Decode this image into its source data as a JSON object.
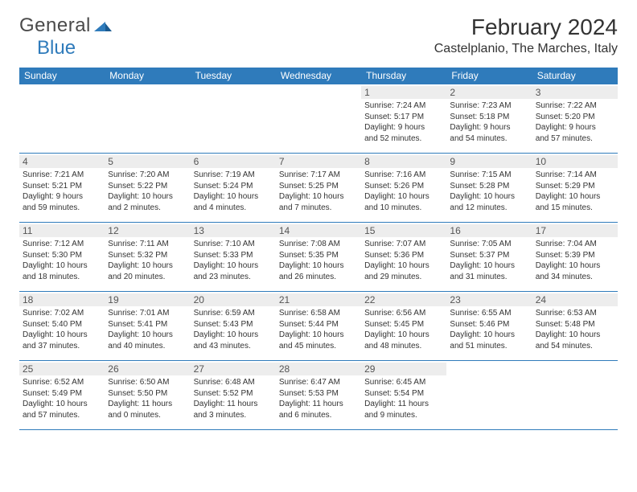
{
  "logo": {
    "text1": "General",
    "text2": "Blue"
  },
  "title": "February 2024",
  "location": "Castelplanio, The Marches, Italy",
  "colors": {
    "header_bg": "#2f7bbb",
    "header_text": "#ffffff",
    "rule": "#2f7bbb",
    "daynum_bg": "#ededed",
    "body_text": "#333333"
  },
  "typography": {
    "title_fontsize": 28,
    "location_fontsize": 16,
    "dayheader_fontsize": 12,
    "cell_fontsize": 10
  },
  "day_headers": [
    "Sunday",
    "Monday",
    "Tuesday",
    "Wednesday",
    "Thursday",
    "Friday",
    "Saturday"
  ],
  "weeks": [
    [
      null,
      null,
      null,
      null,
      {
        "n": "1",
        "sr": "Sunrise: 7:24 AM",
        "ss": "Sunset: 5:17 PM",
        "d1": "Daylight: 9 hours",
        "d2": "and 52 minutes."
      },
      {
        "n": "2",
        "sr": "Sunrise: 7:23 AM",
        "ss": "Sunset: 5:18 PM",
        "d1": "Daylight: 9 hours",
        "d2": "and 54 minutes."
      },
      {
        "n": "3",
        "sr": "Sunrise: 7:22 AM",
        "ss": "Sunset: 5:20 PM",
        "d1": "Daylight: 9 hours",
        "d2": "and 57 minutes."
      }
    ],
    [
      {
        "n": "4",
        "sr": "Sunrise: 7:21 AM",
        "ss": "Sunset: 5:21 PM",
        "d1": "Daylight: 9 hours",
        "d2": "and 59 minutes."
      },
      {
        "n": "5",
        "sr": "Sunrise: 7:20 AM",
        "ss": "Sunset: 5:22 PM",
        "d1": "Daylight: 10 hours",
        "d2": "and 2 minutes."
      },
      {
        "n": "6",
        "sr": "Sunrise: 7:19 AM",
        "ss": "Sunset: 5:24 PM",
        "d1": "Daylight: 10 hours",
        "d2": "and 4 minutes."
      },
      {
        "n": "7",
        "sr": "Sunrise: 7:17 AM",
        "ss": "Sunset: 5:25 PM",
        "d1": "Daylight: 10 hours",
        "d2": "and 7 minutes."
      },
      {
        "n": "8",
        "sr": "Sunrise: 7:16 AM",
        "ss": "Sunset: 5:26 PM",
        "d1": "Daylight: 10 hours",
        "d2": "and 10 minutes."
      },
      {
        "n": "9",
        "sr": "Sunrise: 7:15 AM",
        "ss": "Sunset: 5:28 PM",
        "d1": "Daylight: 10 hours",
        "d2": "and 12 minutes."
      },
      {
        "n": "10",
        "sr": "Sunrise: 7:14 AM",
        "ss": "Sunset: 5:29 PM",
        "d1": "Daylight: 10 hours",
        "d2": "and 15 minutes."
      }
    ],
    [
      {
        "n": "11",
        "sr": "Sunrise: 7:12 AM",
        "ss": "Sunset: 5:30 PM",
        "d1": "Daylight: 10 hours",
        "d2": "and 18 minutes."
      },
      {
        "n": "12",
        "sr": "Sunrise: 7:11 AM",
        "ss": "Sunset: 5:32 PM",
        "d1": "Daylight: 10 hours",
        "d2": "and 20 minutes."
      },
      {
        "n": "13",
        "sr": "Sunrise: 7:10 AM",
        "ss": "Sunset: 5:33 PM",
        "d1": "Daylight: 10 hours",
        "d2": "and 23 minutes."
      },
      {
        "n": "14",
        "sr": "Sunrise: 7:08 AM",
        "ss": "Sunset: 5:35 PM",
        "d1": "Daylight: 10 hours",
        "d2": "and 26 minutes."
      },
      {
        "n": "15",
        "sr": "Sunrise: 7:07 AM",
        "ss": "Sunset: 5:36 PM",
        "d1": "Daylight: 10 hours",
        "d2": "and 29 minutes."
      },
      {
        "n": "16",
        "sr": "Sunrise: 7:05 AM",
        "ss": "Sunset: 5:37 PM",
        "d1": "Daylight: 10 hours",
        "d2": "and 31 minutes."
      },
      {
        "n": "17",
        "sr": "Sunrise: 7:04 AM",
        "ss": "Sunset: 5:39 PM",
        "d1": "Daylight: 10 hours",
        "d2": "and 34 minutes."
      }
    ],
    [
      {
        "n": "18",
        "sr": "Sunrise: 7:02 AM",
        "ss": "Sunset: 5:40 PM",
        "d1": "Daylight: 10 hours",
        "d2": "and 37 minutes."
      },
      {
        "n": "19",
        "sr": "Sunrise: 7:01 AM",
        "ss": "Sunset: 5:41 PM",
        "d1": "Daylight: 10 hours",
        "d2": "and 40 minutes."
      },
      {
        "n": "20",
        "sr": "Sunrise: 6:59 AM",
        "ss": "Sunset: 5:43 PM",
        "d1": "Daylight: 10 hours",
        "d2": "and 43 minutes."
      },
      {
        "n": "21",
        "sr": "Sunrise: 6:58 AM",
        "ss": "Sunset: 5:44 PM",
        "d1": "Daylight: 10 hours",
        "d2": "and 45 minutes."
      },
      {
        "n": "22",
        "sr": "Sunrise: 6:56 AM",
        "ss": "Sunset: 5:45 PM",
        "d1": "Daylight: 10 hours",
        "d2": "and 48 minutes."
      },
      {
        "n": "23",
        "sr": "Sunrise: 6:55 AM",
        "ss": "Sunset: 5:46 PM",
        "d1": "Daylight: 10 hours",
        "d2": "and 51 minutes."
      },
      {
        "n": "24",
        "sr": "Sunrise: 6:53 AM",
        "ss": "Sunset: 5:48 PM",
        "d1": "Daylight: 10 hours",
        "d2": "and 54 minutes."
      }
    ],
    [
      {
        "n": "25",
        "sr": "Sunrise: 6:52 AM",
        "ss": "Sunset: 5:49 PM",
        "d1": "Daylight: 10 hours",
        "d2": "and 57 minutes."
      },
      {
        "n": "26",
        "sr": "Sunrise: 6:50 AM",
        "ss": "Sunset: 5:50 PM",
        "d1": "Daylight: 11 hours",
        "d2": "and 0 minutes."
      },
      {
        "n": "27",
        "sr": "Sunrise: 6:48 AM",
        "ss": "Sunset: 5:52 PM",
        "d1": "Daylight: 11 hours",
        "d2": "and 3 minutes."
      },
      {
        "n": "28",
        "sr": "Sunrise: 6:47 AM",
        "ss": "Sunset: 5:53 PM",
        "d1": "Daylight: 11 hours",
        "d2": "and 6 minutes."
      },
      {
        "n": "29",
        "sr": "Sunrise: 6:45 AM",
        "ss": "Sunset: 5:54 PM",
        "d1": "Daylight: 11 hours",
        "d2": "and 9 minutes."
      },
      null,
      null
    ]
  ]
}
